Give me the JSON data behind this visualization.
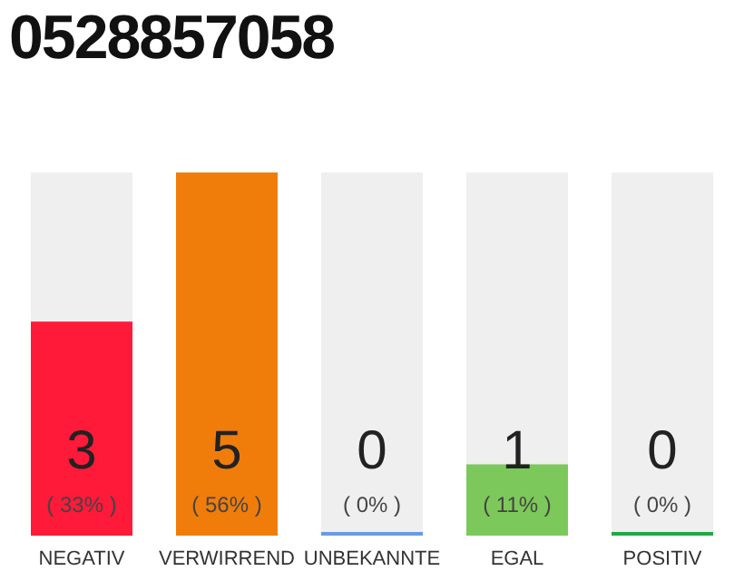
{
  "chart_data": {
    "type": "bar",
    "title": "0528857058",
    "categories": [
      "NEGATIV",
      "VERWIRREND",
      "UNBEKANNTE",
      "EGAL",
      "POSITIV"
    ],
    "values": [
      33,
      56,
      0,
      11,
      0
    ],
    "value_labels": [
      "( 33% )",
      "( 56% )",
      "( 0% )",
      "( 11% )",
      "( 0% )"
    ],
    "colors": [
      "#ff1a3a",
      "#f07d0a",
      "#6a9be0",
      "#7dc85a",
      "#22a845"
    ],
    "annotations": [
      "3",
      "5",
      "0",
      "1",
      "0"
    ],
    "grid": false,
    "legend": false
  }
}
